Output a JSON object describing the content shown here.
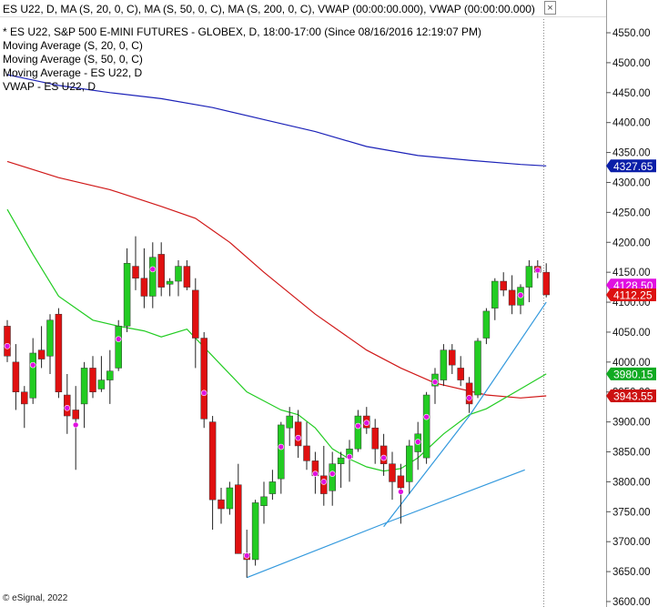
{
  "header": {
    "title": "ES U22, D, MA (S, 20, 0, C), MA (S, 50, 0, C), MA (S, 200, 0, C), VWAP (00:00:00.000), VWAP (00:00:00.000)",
    "close_glyph": "×"
  },
  "legend": [
    "* ES U22, S&P 500 E-MINI FUTURES - GLOBEX, D, 18:00-17:00 (Since 08/16/2016 12:19:07 PM)",
    "Moving Average (S, 20, 0, C)",
    "Moving Average (S, 50, 0, C)",
    "Moving Average - ES U22, D",
    "VWAP - ES U22, D"
  ],
  "footer": "© eSignal, 2022",
  "chart_data": {
    "type": "candlestick",
    "ylim": [
      3600,
      4575
    ],
    "y_ticks": [
      "4550.00",
      "4500.00",
      "4450.00",
      "4400.00",
      "4350.00",
      "4300.00",
      "4250.00",
      "4200.00",
      "4150.00",
      "4100.00",
      "4050.00",
      "4000.00",
      "3950.00",
      "3900.00",
      "3850.00",
      "3800.00",
      "3750.00",
      "3700.00",
      "3650.00",
      "3600.00"
    ],
    "price_labels": [
      {
        "value": 4327.65,
        "text": "4327.65",
        "color": "#0a1ea8"
      },
      {
        "value": 4128.5,
        "text": "4128.50",
        "color": "#e010e0"
      },
      {
        "value": 4112.25,
        "text": "4112.25",
        "color": "#dd1111"
      },
      {
        "value": 3980.15,
        "text": "3980.15",
        "color": "#11aa22"
      },
      {
        "value": 3943.55,
        "text": "3943.55",
        "color": "#cc1111"
      }
    ],
    "candles": [
      {
        "o": 4060,
        "h": 4070,
        "l": 4000,
        "c": 4010
      },
      {
        "o": 4000,
        "h": 4030,
        "l": 3920,
        "c": 3950
      },
      {
        "o": 3950,
        "h": 3960,
        "l": 3890,
        "c": 3930
      },
      {
        "o": 3940,
        "h": 4040,
        "l": 3930,
        "c": 4015
      },
      {
        "o": 4020,
        "h": 4060,
        "l": 3990,
        "c": 4005
      },
      {
        "o": 4010,
        "h": 4080,
        "l": 3980,
        "c": 4070
      },
      {
        "o": 4080,
        "h": 4090,
        "l": 3940,
        "c": 3950
      },
      {
        "o": 3945,
        "h": 3980,
        "l": 3880,
        "c": 3910
      },
      {
        "o": 3920,
        "h": 3960,
        "l": 3820,
        "c": 3905
      },
      {
        "o": 3930,
        "h": 4000,
        "l": 3890,
        "c": 3990
      },
      {
        "o": 3990,
        "h": 4010,
        "l": 3940,
        "c": 3950
      },
      {
        "o": 3955,
        "h": 4010,
        "l": 3950,
        "c": 3970
      },
      {
        "o": 3970,
        "h": 4020,
        "l": 3930,
        "c": 3985
      },
      {
        "o": 3990,
        "h": 4070,
        "l": 3985,
        "c": 4060
      },
      {
        "o": 4060,
        "h": 4190,
        "l": 4050,
        "c": 4165
      },
      {
        "o": 4160,
        "h": 4210,
        "l": 4120,
        "c": 4140
      },
      {
        "o": 4140,
        "h": 4190,
        "l": 4090,
        "c": 4110
      },
      {
        "o": 4110,
        "h": 4200,
        "l": 4090,
        "c": 4175
      },
      {
        "o": 4180,
        "h": 4200,
        "l": 4110,
        "c": 4125
      },
      {
        "o": 4130,
        "h": 4140,
        "l": 4110,
        "c": 4135
      },
      {
        "o": 4135,
        "h": 4170,
        "l": 4110,
        "c": 4160
      },
      {
        "o": 4160,
        "h": 4170,
        "l": 4120,
        "c": 4125
      },
      {
        "o": 4120,
        "h": 4140,
        "l": 3990,
        "c": 4040
      },
      {
        "o": 4040,
        "h": 4050,
        "l": 3890,
        "c": 3905
      },
      {
        "o": 3900,
        "h": 3910,
        "l": 3720,
        "c": 3770
      },
      {
        "o": 3770,
        "h": 3790,
        "l": 3730,
        "c": 3755
      },
      {
        "o": 3755,
        "h": 3800,
        "l": 3745,
        "c": 3790
      },
      {
        "o": 3795,
        "h": 3830,
        "l": 3680,
        "c": 3680
      },
      {
        "o": 3680,
        "h": 3720,
        "l": 3640,
        "c": 3670
      },
      {
        "o": 3670,
        "h": 3770,
        "l": 3660,
        "c": 3765
      },
      {
        "o": 3760,
        "h": 3800,
        "l": 3730,
        "c": 3775
      },
      {
        "o": 3780,
        "h": 3820,
        "l": 3770,
        "c": 3800
      },
      {
        "o": 3805,
        "h": 3900,
        "l": 3780,
        "c": 3895
      },
      {
        "o": 3890,
        "h": 3925,
        "l": 3860,
        "c": 3910
      },
      {
        "o": 3900,
        "h": 3920,
        "l": 3840,
        "c": 3860
      },
      {
        "o": 3860,
        "h": 3900,
        "l": 3820,
        "c": 3835
      },
      {
        "o": 3835,
        "h": 3850,
        "l": 3780,
        "c": 3810
      },
      {
        "o": 3810,
        "h": 3860,
        "l": 3760,
        "c": 3780
      },
      {
        "o": 3785,
        "h": 3850,
        "l": 3760,
        "c": 3830
      },
      {
        "o": 3830,
        "h": 3850,
        "l": 3790,
        "c": 3840
      },
      {
        "o": 3840,
        "h": 3870,
        "l": 3800,
        "c": 3855
      },
      {
        "o": 3855,
        "h": 3920,
        "l": 3850,
        "c": 3910
      },
      {
        "o": 3910,
        "h": 3925,
        "l": 3880,
        "c": 3890
      },
      {
        "o": 3890,
        "h": 3905,
        "l": 3830,
        "c": 3855
      },
      {
        "o": 3860,
        "h": 3880,
        "l": 3810,
        "c": 3830
      },
      {
        "o": 3830,
        "h": 3850,
        "l": 3770,
        "c": 3800
      },
      {
        "o": 3810,
        "h": 3830,
        "l": 3730,
        "c": 3790
      },
      {
        "o": 3800,
        "h": 3870,
        "l": 3780,
        "c": 3860
      },
      {
        "o": 3850,
        "h": 3900,
        "l": 3820,
        "c": 3880
      },
      {
        "o": 3840,
        "h": 3950,
        "l": 3830,
        "c": 3945
      },
      {
        "o": 3960,
        "h": 3990,
        "l": 3930,
        "c": 3980
      },
      {
        "o": 3970,
        "h": 4030,
        "l": 3960,
        "c": 4020
      },
      {
        "o": 4020,
        "h": 4030,
        "l": 3980,
        "c": 3995
      },
      {
        "o": 3990,
        "h": 4010,
        "l": 3960,
        "c": 3970
      },
      {
        "o": 3965,
        "h": 3975,
        "l": 3915,
        "c": 3930
      },
      {
        "o": 3945,
        "h": 4040,
        "l": 3940,
        "c": 4035
      },
      {
        "o": 4040,
        "h": 4090,
        "l": 4030,
        "c": 4085
      },
      {
        "o": 4090,
        "h": 4140,
        "l": 4070,
        "c": 4135
      },
      {
        "o": 4135,
        "h": 4150,
        "l": 4110,
        "c": 4120
      },
      {
        "o": 4120,
        "h": 4145,
        "l": 4080,
        "c": 4095
      },
      {
        "o": 4095,
        "h": 4130,
        "l": 4080,
        "c": 4125
      },
      {
        "o": 4125,
        "h": 4170,
        "l": 4100,
        "c": 4160
      },
      {
        "o": 4160,
        "h": 4170,
        "l": 4140,
        "c": 4150
      },
      {
        "o": 4150,
        "h": 4165,
        "l": 4108,
        "c": 4112.25
      }
    ],
    "vwap_dot_indices": [
      0,
      3,
      7,
      8,
      13,
      17,
      23,
      28,
      32,
      34,
      36,
      37,
      38,
      40,
      41,
      42,
      44,
      46,
      48,
      49,
      50,
      54,
      60,
      62
    ],
    "series": [
      {
        "color": "#1c22b8",
        "points": [
          [
            0,
            4480
          ],
          [
            6,
            4462
          ],
          [
            12,
            4450
          ],
          [
            18,
            4440
          ],
          [
            24,
            4425
          ],
          [
            30,
            4405
          ],
          [
            36,
            4385
          ],
          [
            42,
            4360
          ],
          [
            48,
            4345
          ],
          [
            54,
            4337
          ],
          [
            60,
            4330
          ],
          [
            63,
            4327.65
          ]
        ]
      },
      {
        "color": "#d01818",
        "points": [
          [
            0,
            4335
          ],
          [
            6,
            4308
          ],
          [
            12,
            4288
          ],
          [
            18,
            4260
          ],
          [
            22,
            4240
          ],
          [
            26,
            4200
          ],
          [
            30,
            4150
          ],
          [
            36,
            4080
          ],
          [
            42,
            4020
          ],
          [
            46,
            3990
          ],
          [
            50,
            3965
          ],
          [
            56,
            3945
          ],
          [
            60,
            3940
          ],
          [
            63,
            3943.55
          ]
        ]
      },
      {
        "color": "#22cc22",
        "points": [
          [
            0,
            4255
          ],
          [
            3,
            4180
          ],
          [
            6,
            4110
          ],
          [
            10,
            4070
          ],
          [
            13,
            4060
          ],
          [
            16,
            4052
          ],
          [
            18,
            4042
          ],
          [
            21,
            4055
          ],
          [
            24,
            4010
          ],
          [
            28,
            3950
          ],
          [
            32,
            3920
          ],
          [
            34,
            3912
          ],
          [
            36,
            3890
          ],
          [
            38,
            3855
          ],
          [
            40,
            3838
          ],
          [
            42,
            3825
          ],
          [
            44,
            3818
          ],
          [
            46,
            3822
          ],
          [
            48,
            3840
          ],
          [
            51,
            3880
          ],
          [
            54,
            3912
          ],
          [
            56,
            3922
          ],
          [
            60,
            3955
          ],
          [
            63,
            3980.15
          ]
        ]
      },
      {
        "color": "#3399dd",
        "points": [
          [
            28,
            3640
          ],
          [
            44,
            3730
          ],
          [
            60.5,
            3820
          ]
        ]
      },
      {
        "color": "#3399dd",
        "points": [
          [
            44,
            3725
          ],
          [
            54,
            3910
          ],
          [
            63,
            4100
          ]
        ]
      }
    ]
  }
}
